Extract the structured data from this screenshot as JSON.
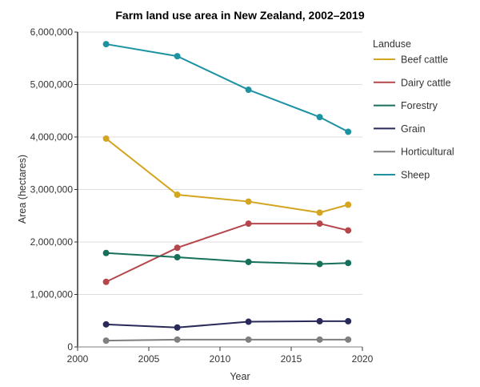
{
  "chart_data": {
    "type": "line",
    "title": "Farm land use area in New Zealand, 2002–2019",
    "xlabel": "Year",
    "ylabel": "Area (hectares)",
    "xlim": [
      2000,
      2020
    ],
    "ylim": [
      0,
      6000000
    ],
    "x_ticks": [
      2000,
      2005,
      2010,
      2015,
      2020
    ],
    "x_tick_labels": [
      "2000",
      "2005",
      "2010",
      "2015",
      "2020"
    ],
    "y_ticks": [
      0,
      1000000,
      2000000,
      3000000,
      4000000,
      5000000,
      6000000
    ],
    "y_tick_labels": [
      "0",
      "1,000,000",
      "2,000,000",
      "3,000,000",
      "4,000,000",
      "5,000,000",
      "6,000,000"
    ],
    "grid": true,
    "legend_title": "Landuse",
    "legend_position": "right",
    "x": [
      2002,
      2007,
      2012,
      2017,
      2019
    ],
    "series": [
      {
        "name": "Beef cattle",
        "color": "#d4a520",
        "values": [
          3970000,
          2900000,
          2770000,
          2560000,
          2710000
        ]
      },
      {
        "name": "Dairy cattle",
        "color": "#b5474c",
        "values": [
          1240000,
          1890000,
          2350000,
          2350000,
          2220000
        ]
      },
      {
        "name": "Forestry",
        "color": "#16705a",
        "values": [
          1790000,
          1710000,
          1620000,
          1580000,
          1600000
        ]
      },
      {
        "name": "Grain",
        "color": "#2a2a5a",
        "values": [
          430000,
          370000,
          480000,
          490000,
          490000
        ]
      },
      {
        "name": "Horticultural",
        "color": "#7f7f7f",
        "values": [
          120000,
          140000,
          140000,
          140000,
          140000
        ]
      },
      {
        "name": "Sheep",
        "color": "#1d93a2",
        "values": [
          5770000,
          5540000,
          4900000,
          4380000,
          4100000
        ]
      }
    ]
  }
}
